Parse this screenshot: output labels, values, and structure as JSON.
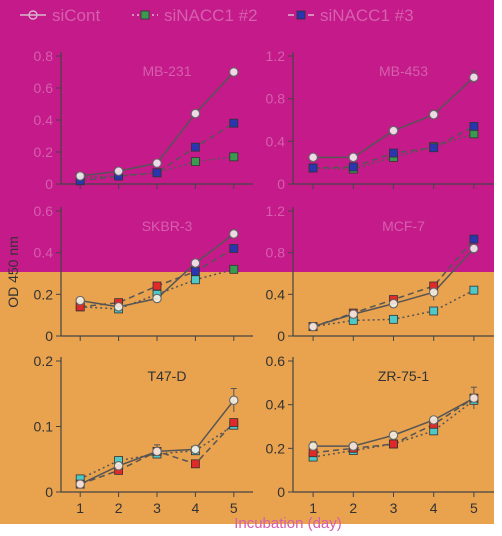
{
  "figure": {
    "ylabel": "OD 450 nm",
    "xlabel": "Incubation (day)",
    "colors": {
      "band_top": "#c41a8a",
      "band_bottom": "#e9a24e",
      "axis": "#444444",
      "text_top": "#d65fae",
      "text_bottom": "#333333"
    }
  },
  "legend": {
    "items": [
      {
        "label": "siCont",
        "style": "solid",
        "marker": "open-circle"
      },
      {
        "label": "siNACC1 #2",
        "style": "dotted",
        "marker": "filled-square-teal"
      },
      {
        "label": "siNACC1 #3",
        "style": "dashed",
        "marker": "filled-square-red"
      }
    ]
  },
  "chart_data": [
    {
      "type": "line",
      "title": "MB-231",
      "x": [
        1,
        2,
        3,
        4,
        5
      ],
      "ylim": [
        0,
        0.8
      ],
      "yticks": [
        "0",
        "0.2",
        "0.4",
        "0.6",
        "0.8"
      ],
      "series": [
        {
          "name": "siCont",
          "values": [
            0.05,
            0.08,
            0.13,
            0.44,
            0.7
          ]
        },
        {
          "name": "siNACC1 #2",
          "values": [
            0.04,
            0.05,
            0.07,
            0.14,
            0.17
          ]
        },
        {
          "name": "siNACC1 #3",
          "values": [
            0.02,
            0.05,
            0.07,
            0.23,
            0.38
          ]
        }
      ]
    },
    {
      "type": "line",
      "title": "MB-453",
      "x": [
        1,
        2,
        3,
        4,
        5
      ],
      "ylim": [
        0,
        1.2
      ],
      "yticks": [
        "0",
        "0.4",
        "0.8",
        "1.2"
      ],
      "series": [
        {
          "name": "siCont",
          "values": [
            0.25,
            0.25,
            0.5,
            0.65,
            1.0
          ]
        },
        {
          "name": "siNACC1 #2",
          "values": [
            0.15,
            0.14,
            0.25,
            0.35,
            0.47
          ]
        },
        {
          "name": "siNACC1 #3",
          "values": [
            0.15,
            0.16,
            0.29,
            0.34,
            0.54
          ]
        }
      ]
    },
    {
      "type": "line",
      "title": "SKBR-3",
      "x": [
        1,
        2,
        3,
        4,
        5
      ],
      "ylim": [
        0,
        0.6
      ],
      "yticks": [
        "0",
        "0.2",
        "0.4",
        "0.6"
      ],
      "series": [
        {
          "name": "siCont",
          "values": [
            0.17,
            0.14,
            0.18,
            0.35,
            0.49
          ]
        },
        {
          "name": "siNACC1 #2",
          "values": [
            0.14,
            0.13,
            0.2,
            0.27,
            0.32
          ]
        },
        {
          "name": "siNACC1 #3",
          "values": [
            0.14,
            0.16,
            0.24,
            0.31,
            0.42
          ]
        }
      ]
    },
    {
      "type": "line",
      "title": "MCF-7",
      "x": [
        1,
        2,
        3,
        4,
        5
      ],
      "ylim": [
        0,
        1.2
      ],
      "yticks": [
        "0",
        "0.4",
        "0.8",
        "1.2"
      ],
      "series": [
        {
          "name": "siCont",
          "values": [
            0.09,
            0.21,
            0.31,
            0.42,
            0.84
          ]
        },
        {
          "name": "siNACC1 #2",
          "values": [
            0.09,
            0.15,
            0.16,
            0.24,
            0.44
          ]
        },
        {
          "name": "siNACC1 #3",
          "values": [
            0.09,
            0.22,
            0.35,
            0.48,
            0.93
          ]
        }
      ]
    },
    {
      "type": "line",
      "title": "T47-D",
      "x": [
        1,
        2,
        3,
        4,
        5
      ],
      "ylim": [
        0,
        0.2
      ],
      "yticks": [
        "0",
        "0.1",
        "0.2"
      ],
      "series": [
        {
          "name": "siCont",
          "values": [
            0.012,
            0.04,
            0.062,
            0.065,
            0.14
          ]
        },
        {
          "name": "siNACC1 #2",
          "values": [
            0.02,
            0.048,
            0.058,
            0.063,
            0.102
          ]
        },
        {
          "name": "siNACC1 #3",
          "values": [
            0.012,
            0.033,
            0.062,
            0.043,
            0.106
          ]
        }
      ]
    },
    {
      "type": "line",
      "title": "ZR-75-1",
      "x": [
        1,
        2,
        3,
        4,
        5
      ],
      "ylim": [
        0,
        0.6
      ],
      "yticks": [
        "0",
        "0.2",
        "0.4",
        "0.6"
      ],
      "series": [
        {
          "name": "siCont",
          "values": [
            0.21,
            0.21,
            0.26,
            0.33,
            0.43
          ]
        },
        {
          "name": "siNACC1 #2",
          "values": [
            0.16,
            0.19,
            0.22,
            0.28,
            0.42
          ]
        },
        {
          "name": "siNACC1 #3",
          "values": [
            0.18,
            0.2,
            0.22,
            0.31,
            0.43
          ]
        }
      ]
    }
  ]
}
